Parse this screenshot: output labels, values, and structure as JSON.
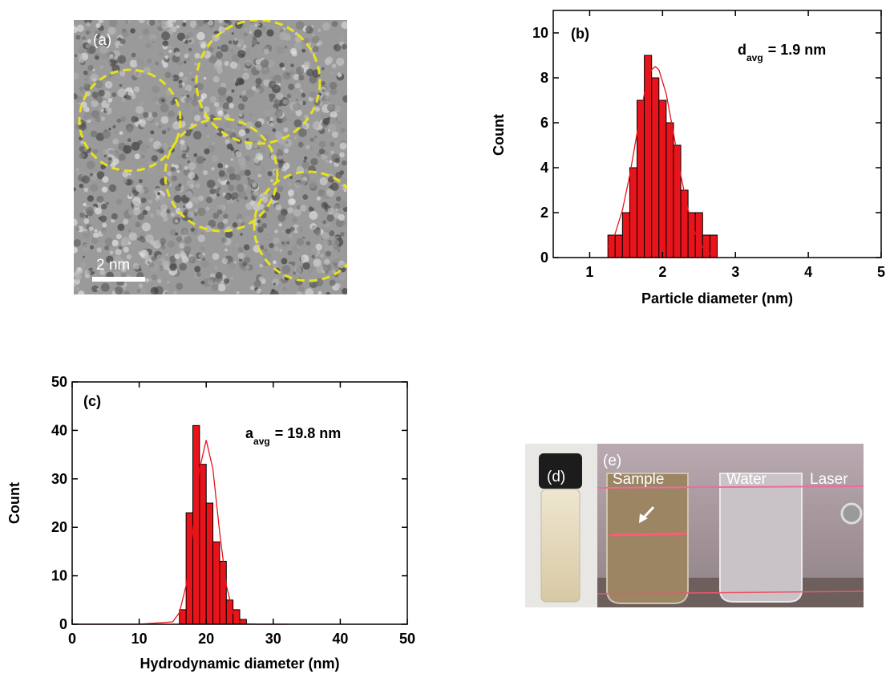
{
  "panels": {
    "a": {
      "label": "(a)",
      "scale_bar": "2 nm"
    },
    "d": {
      "label": "(d)"
    },
    "e": {
      "label": "(e)",
      "sample": "Sample",
      "water": "Water",
      "laser": "Laser"
    }
  },
  "chart_data": [
    {
      "type": "histogram",
      "label": "(b)",
      "annotation": {
        "main": "d",
        "sub": "avg",
        "rest": "= 1.9 nm"
      },
      "x_label": "Particle diameter (nm)",
      "y_label": "Count",
      "bins": [
        1.25,
        1.35,
        1.45,
        1.55,
        1.65,
        1.75,
        1.85,
        1.95,
        2.05,
        2.15,
        2.25,
        2.35,
        2.45,
        2.55,
        2.65,
        2.75
      ],
      "values": [
        1,
        1,
        2,
        4,
        7,
        9,
        8,
        7,
        6,
        5,
        3,
        2,
        2,
        1,
        1
      ],
      "color": "#e8141b",
      "fit": {
        "color": "#e8141b",
        "x": [
          1.25,
          1.35,
          1.45,
          1.55,
          1.65,
          1.75,
          1.85,
          1.9,
          1.95,
          2.05,
          2.15,
          2.25,
          2.35,
          2.45,
          2.55,
          2.65,
          2.75
        ],
        "values": [
          0.47,
          1.07,
          2.12,
          3.67,
          5.54,
          7.29,
          8.36,
          8.5,
          8.36,
          7.29,
          5.54,
          3.67,
          2.12,
          1.07,
          0.47,
          0.18,
          0.06
        ]
      },
      "xlim": [
        0.5,
        5
      ],
      "xticks": [
        1,
        2,
        3,
        4,
        5
      ],
      "ylim": [
        0,
        11
      ],
      "yticks": [
        0,
        2,
        4,
        6,
        8,
        10
      ]
    },
    {
      "type": "histogram",
      "label": "(c)",
      "annotation": {
        "main": "a",
        "sub": "avg",
        "rest": "= 19.8 nm"
      },
      "x_label": "Hydrodynamic diameter (nm)",
      "y_label": "Count",
      "bins": [
        16,
        17,
        18,
        19,
        20,
        21,
        22,
        23,
        24,
        25,
        26
      ],
      "values": [
        3,
        23,
        41,
        33,
        25,
        17,
        13,
        5,
        3,
        1
      ],
      "color": "#e8141b",
      "fit": {
        "color": "#e8141b",
        "x": [
          0,
          10,
          15,
          16,
          17,
          18,
          19,
          20,
          21,
          22,
          23,
          24,
          25,
          26,
          28,
          32
        ],
        "values": [
          0,
          0,
          0.5,
          2.39,
          8.0,
          19.0,
          32.0,
          38,
          32.0,
          19.0,
          8.0,
          2.39,
          0.5,
          0.07,
          0,
          0
        ]
      },
      "xlim": [
        0,
        50
      ],
      "xticks": [
        0,
        10,
        20,
        30,
        40,
        50
      ],
      "ylim": [
        0,
        50
      ],
      "yticks": [
        0,
        10,
        20,
        30,
        40,
        50
      ]
    }
  ]
}
